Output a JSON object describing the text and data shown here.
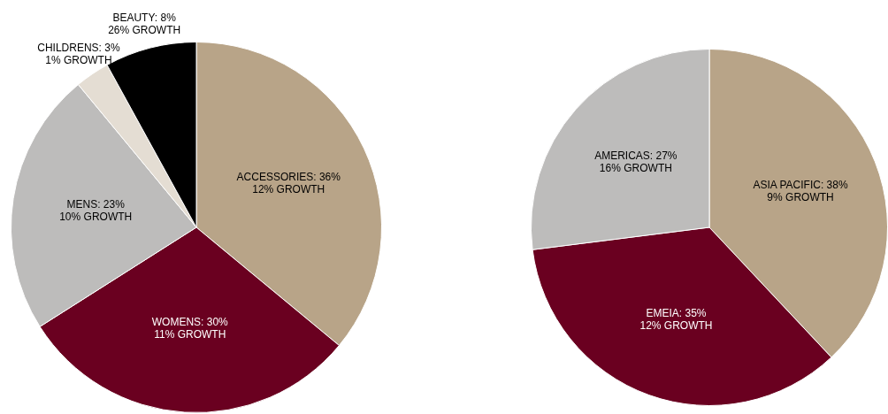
{
  "chart_data": [
    {
      "type": "pie",
      "categories": [
        "ACCESSORIES",
        "WOMENS",
        "MENS",
        "CHILDRENS",
        "BEAUTY"
      ],
      "values": [
        36,
        30,
        23,
        3,
        8
      ],
      "value_labels": [
        "36%",
        "30%",
        "23%",
        "3%",
        "8%"
      ],
      "colors": [
        "#b8a488",
        "#6a0020",
        "#bdbcbb",
        "#e4ddd3",
        "#000000"
      ],
      "legend": false,
      "annotations": [
        {
          "text": "12% GROWTH",
          "x": "ACCESSORIES"
        },
        {
          "text": "11% GROWTH",
          "x": "WOMENS"
        },
        {
          "text": "10% GROWTH",
          "x": "MENS"
        },
        {
          "text": "1% GROWTH",
          "x": "CHILDRENS"
        },
        {
          "text": "26% GROWTH",
          "x": "BEAUTY"
        }
      ]
    },
    {
      "type": "pie",
      "categories": [
        "ASIA PACIFIC",
        "EMEIA",
        "AMERICAS"
      ],
      "values": [
        38,
        35,
        27
      ],
      "value_labels": [
        "38%",
        "35%",
        "27%"
      ],
      "colors": [
        "#b8a488",
        "#6a0020",
        "#bdbcbb"
      ],
      "legend": false,
      "annotations": [
        {
          "text": "9% GROWTH",
          "x": "ASIA PACIFIC"
        },
        {
          "text": "12% GROWTH",
          "x": "EMEIA"
        },
        {
          "text": "16% GROWTH",
          "x": "AMERICAS"
        }
      ]
    }
  ]
}
